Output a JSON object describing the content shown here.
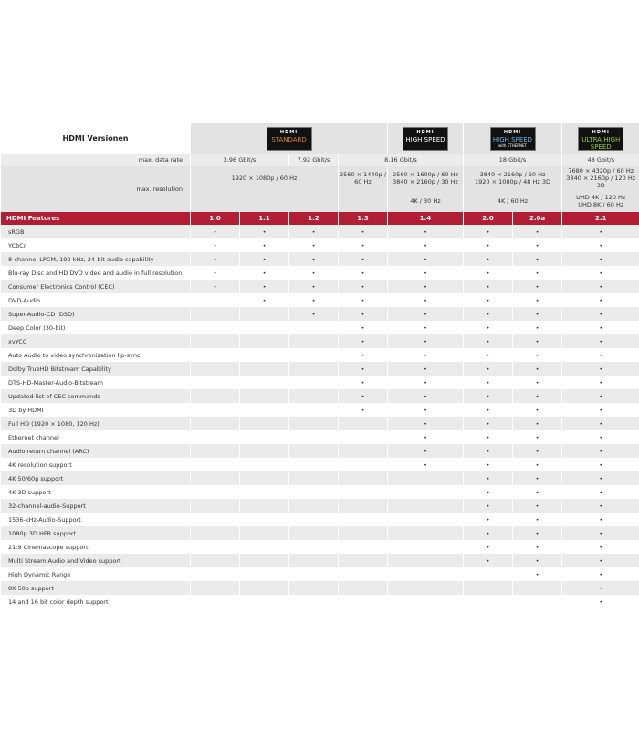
{
  "title": "HDMI Versionen",
  "logos": [
    {
      "brand": "HDMI",
      "name": "STANDARD",
      "sub": "",
      "color": "#d9822b"
    },
    {
      "brand": "HDMI",
      "name": "HIGH SPEED",
      "sub": "",
      "color": "#ffffff"
    },
    {
      "brand": "HDMI",
      "name": "HIGH SPEED",
      "sub": "with ETHERNET",
      "color": "#6fb6e8"
    },
    {
      "brand": "HDMI",
      "name": "ULTRA HIGH SPEED",
      "sub": "",
      "color": "#9acd32"
    }
  ],
  "data_rate": {
    "label": "max. data rate",
    "values": [
      "3.96 Gbit/s",
      "7.92 Gbit/s",
      "8.16 Gbit/s",
      "18 Gbit/s",
      "48 Gbit/s"
    ]
  },
  "resolution": {
    "label": "max. resolution",
    "row1": [
      "1920 × 1080p / 60 Hz",
      "2560 × 1440p / 60 Hz",
      "2560 × 1600p / 60 Hz",
      "3840 × 2160p / 30 Hz",
      "3840 × 2160p / 60 Hz",
      "1920 × 1080p / 48 Hz 3D",
      "7680 × 4320p / 60 Hz",
      "3840 × 2160p / 120 Hz 3D"
    ],
    "row2": [
      "4K / 30 Hz",
      "4K / 60 Hz",
      "UHD 4K / 120 Hz",
      "UHD 8K / 60 Hz"
    ]
  },
  "features_header": "HDMI Features",
  "versions": [
    "1.0",
    "1.1",
    "1.2",
    "1.3",
    "1.4",
    "2.0",
    "2.0a",
    "2.1"
  ],
  "dot": "•",
  "features": [
    {
      "name": "sRGB",
      "since": "1.0"
    },
    {
      "name": "YCbCr",
      "since": "1.0"
    },
    {
      "name": "8-channel LPCM, 192 kHz, 24-bit audio capability",
      "since": "1.0"
    },
    {
      "name": "Blu-ray Disc and HD DVD video and audio in full resolution",
      "since": "1.0"
    },
    {
      "name": "Consumer Electronics Control (CEC)",
      "since": "1.0"
    },
    {
      "name": "DVD-Audio",
      "since": "1.1"
    },
    {
      "name": "Super-Audio-CD (DSD)",
      "since": "1.2"
    },
    {
      "name": "Deep Color (30-bit)",
      "since": "1.3"
    },
    {
      "name": "xvYCC",
      "since": "1.3"
    },
    {
      "name": "Auto Audio to video synchronization lip-sync",
      "since": "1.3"
    },
    {
      "name": "Dolby TrueHD Bitstream Capability",
      "since": "1.3"
    },
    {
      "name": "DTS-HD-Master-Audio-Bitstream",
      "since": "1.3"
    },
    {
      "name": "Updated list of CEC commands",
      "since": "1.3"
    },
    {
      "name": "3D by HDMI",
      "since": "1.3"
    },
    {
      "name": "Full HD (1920 × 1080, 120 Hz)",
      "since": "1.4"
    },
    {
      "name": "Ethernet channel",
      "since": "1.4"
    },
    {
      "name": "Audio return channel (ARC)",
      "since": "1.4"
    },
    {
      "name": "4K resolution support",
      "since": "1.4"
    },
    {
      "name": "4K 50/60p support",
      "since": "2.0"
    },
    {
      "name": "4K 3D support",
      "since": "2.0"
    },
    {
      "name": "32-channel-audio-Support",
      "since": "2.0"
    },
    {
      "name": "1536-kHz-Audio-Support",
      "since": "2.0"
    },
    {
      "name": "1080p 3D HFR support",
      "since": "2.0"
    },
    {
      "name": "21:9 Cinemascope support",
      "since": "2.0"
    },
    {
      "name": "Multi Stream Audio and Video support",
      "since": "2.0"
    },
    {
      "name": "High Dynamic Range",
      "since": "2.0a"
    },
    {
      "name": "8K 50p support",
      "since": "2.1"
    },
    {
      "name": "14 and 16 bit color depth support",
      "since": "2.1"
    }
  ]
}
